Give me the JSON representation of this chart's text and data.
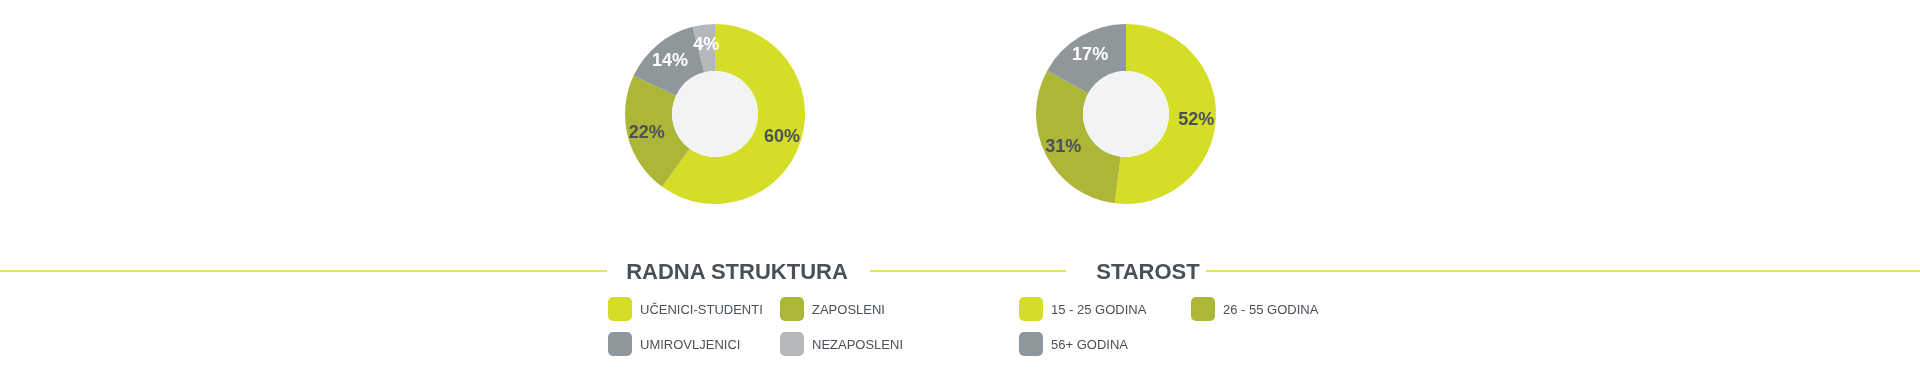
{
  "chart_data": [
    {
      "type": "donut",
      "title": "RADNA STRUKTURA",
      "categories": [
        "UČENICI-STUDENTI",
        "ZAPOSLENI",
        "UMIROVLJENICI",
        "NEZAPOSLENI"
      ],
      "values": [
        60,
        22,
        14,
        4
      ],
      "value_labels": [
        "60%",
        "22%",
        "14%",
        "4%"
      ],
      "colors": [
        "#d5de26",
        "#adb636",
        "#8f979b",
        "#b4b8bb"
      ],
      "legend": "bottom"
    },
    {
      "type": "donut",
      "title": "STAROST",
      "categories": [
        "15 - 25 GODINA",
        "26 - 55 GODINA",
        "56+ GODINA"
      ],
      "values": [
        52,
        31,
        17
      ],
      "value_labels": [
        "52%",
        "31%",
        "17%"
      ],
      "colors": [
        "#d5de26",
        "#adb636",
        "#8f979b"
      ],
      "legend": "bottom"
    }
  ]
}
